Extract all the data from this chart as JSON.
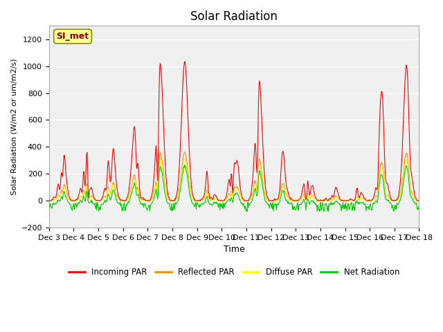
{
  "title": "Solar Radiation",
  "ylabel": "Solar Radiation (W/m2 or um/m2/s)",
  "xlabel": "Time",
  "ylim": [
    -200,
    1300
  ],
  "yticks": [
    -200,
    0,
    200,
    400,
    600,
    800,
    1000,
    1200
  ],
  "station_label": "SI_met",
  "colors": {
    "incoming": "#FF0000",
    "reflected": "#FF8C00",
    "diffuse": "#FFFF00",
    "net": "#00CC00"
  },
  "legend_labels": [
    "Incoming PAR",
    "Reflected PAR",
    "Diffuse PAR",
    "Net Radiation"
  ],
  "x_tick_labels": [
    "Dec 3",
    "Dec 4",
    "Dec 5",
    "Dec 6",
    "Dec 7",
    "Dec 8",
    "Dec 9",
    "Dec 10",
    "Dec 11",
    "Dec 12",
    "Dec 13",
    "Dec 14",
    "Dec 15",
    "Dec 16",
    "Dec 17",
    "Dec 18"
  ],
  "n_days": 15,
  "pts_per_day": 48
}
